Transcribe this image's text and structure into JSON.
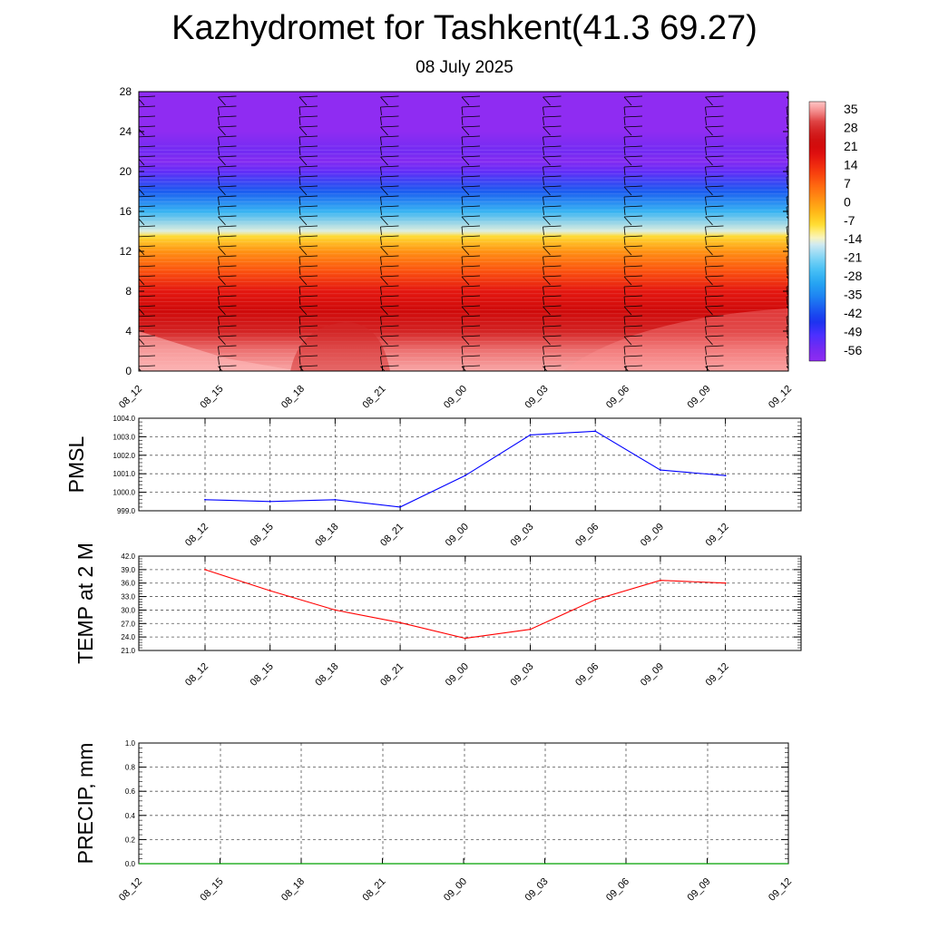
{
  "title": "Kazhydromet for Tashkent(41.3 69.27)",
  "subtitle": "08 July 2025",
  "colors": {
    "pmsl_line": "#0000ff",
    "temp_line": "#ff0000",
    "precip_line": "#00a000",
    "grid": "#555555"
  },
  "chart_data": [
    {
      "id": "cross-section",
      "type": "heatmap",
      "ylabel": "",
      "x_ticks": [
        "08_12",
        "08_15",
        "08_18",
        "08_21",
        "09_00",
        "09_03",
        "09_06",
        "09_09",
        "09_12"
      ],
      "y_ticks": [
        0,
        4,
        8,
        12,
        16,
        20,
        24,
        28
      ],
      "ylim": [
        0,
        28
      ],
      "colorbar": {
        "labels": [
          "35",
          "28",
          "21",
          "14",
          "7",
          "0",
          "-7",
          "-14",
          "-21",
          "-28",
          "-35",
          "-42",
          "-49",
          "-56"
        ],
        "range": [
          -60,
          38
        ]
      },
      "temperature_profile": [
        {
          "y": 0,
          "value": 36
        },
        {
          "y": 2,
          "value": 33
        },
        {
          "y": 4,
          "value": 27
        },
        {
          "y": 6,
          "value": 22
        },
        {
          "y": 8,
          "value": 17
        },
        {
          "y": 10,
          "value": 9
        },
        {
          "y": 12,
          "value": 1
        },
        {
          "y": 13.5,
          "value": -8
        },
        {
          "y": 14,
          "value": -15
        },
        {
          "y": 16,
          "value": -28
        },
        {
          "y": 18,
          "value": -40
        },
        {
          "y": 20,
          "value": -53
        },
        {
          "y": 21,
          "value": -58
        },
        {
          "y": 22,
          "value": -55
        },
        {
          "y": 24,
          "value": -60
        },
        {
          "y": 28,
          "value": -60
        }
      ],
      "wind_barbs": true
    },
    {
      "id": "pmsl",
      "type": "line",
      "ylabel": "PMSL",
      "x": [
        "08_12",
        "08_15",
        "08_18",
        "08_21",
        "09_00",
        "09_03",
        "09_06",
        "09_09",
        "09_12"
      ],
      "values": [
        999.6,
        999.5,
        999.6,
        999.2,
        1000.9,
        1003.1,
        1003.3,
        1001.2,
        1000.9
      ],
      "y_ticks": [
        "999.0",
        "1000.0",
        "1001.0",
        "1002.0",
        "1003.0",
        "1004.0"
      ],
      "ylim": [
        999.0,
        1004.0
      ]
    },
    {
      "id": "temp",
      "type": "line",
      "ylabel": "TEMP at 2 M",
      "x": [
        "08_12",
        "08_15",
        "08_18",
        "08_21",
        "09_00",
        "09_03",
        "09_06",
        "09_09",
        "09_12"
      ],
      "values": [
        39.0,
        34.3,
        30.0,
        27.2,
        23.7,
        25.7,
        32.3,
        36.6,
        36.0
      ],
      "y_ticks": [
        "21.0",
        "24.0",
        "27.0",
        "30.0",
        "33.0",
        "36.0",
        "39.0",
        "42.0"
      ],
      "ylim": [
        21.0,
        42.0
      ]
    },
    {
      "id": "precip",
      "type": "line",
      "ylabel": "PRECIP, mm",
      "x_ticks": [
        "08_12",
        "08_15",
        "08_18",
        "08_21",
        "09_00",
        "09_03",
        "09_06",
        "09_09",
        "09_12"
      ],
      "values": [
        0,
        0,
        0,
        0,
        0,
        0,
        0,
        0,
        0
      ],
      "y_ticks": [
        "0.0",
        "0.2",
        "0.4",
        "0.6",
        "0.8",
        "1.0"
      ],
      "ylim": [
        0.0,
        1.0
      ]
    }
  ]
}
